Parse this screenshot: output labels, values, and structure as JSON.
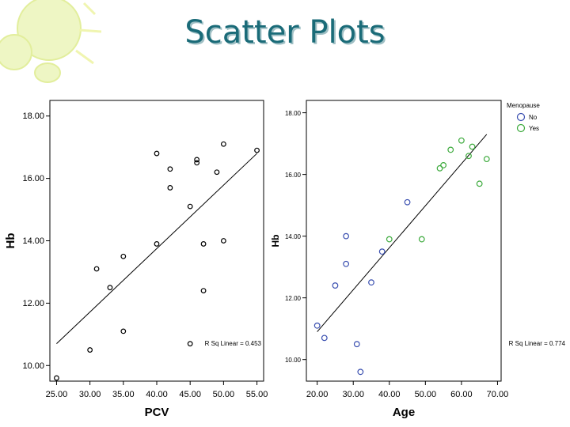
{
  "slide": {
    "title": "Scatter Plots",
    "accent_color": "#1a6b78",
    "decoration_color": "#e6f0a8"
  },
  "chart_data": [
    {
      "type": "scatter",
      "title": "",
      "xlabel": "PCV",
      "ylabel": "Hb",
      "xlim": [
        24,
        56
      ],
      "ylim": [
        9.5,
        18.5
      ],
      "xticks": [
        25,
        30,
        35,
        40,
        45,
        50,
        55
      ],
      "xtick_labels": [
        "25.00",
        "30.00",
        "35.00",
        "40.00",
        "45.00",
        "50.00",
        "55.00"
      ],
      "yticks": [
        10,
        12,
        14,
        16,
        18
      ],
      "ytick_labels": [
        "10.00",
        "12.00",
        "14.00",
        "16.00",
        "18.00"
      ],
      "grid": false,
      "series": [
        {
          "marker_color": "#000000",
          "points": [
            {
              "x": 25,
              "y": 9.6
            },
            {
              "x": 30,
              "y": 10.5
            },
            {
              "x": 31,
              "y": 13.1
            },
            {
              "x": 33,
              "y": 12.5
            },
            {
              "x": 35,
              "y": 13.5
            },
            {
              "x": 35,
              "y": 11.1
            },
            {
              "x": 40,
              "y": 16.8
            },
            {
              "x": 40,
              "y": 13.9
            },
            {
              "x": 42,
              "y": 16.3
            },
            {
              "x": 42,
              "y": 15.7
            },
            {
              "x": 45,
              "y": 15.1
            },
            {
              "x": 45,
              "y": 10.7
            },
            {
              "x": 46,
              "y": 16.6
            },
            {
              "x": 46,
              "y": 16.5
            },
            {
              "x": 47,
              "y": 13.9
            },
            {
              "x": 47,
              "y": 12.4
            },
            {
              "x": 49,
              "y": 16.2
            },
            {
              "x": 50,
              "y": 17.1
            },
            {
              "x": 50,
              "y": 14.0
            },
            {
              "x": 55,
              "y": 16.9
            }
          ]
        }
      ],
      "fit_line": {
        "x": [
          25,
          55
        ],
        "y": [
          10.7,
          16.8
        ],
        "color": "#000000"
      },
      "annotation": "R Sq Linear = 0.453"
    },
    {
      "type": "scatter",
      "title": "",
      "xlabel": "Age",
      "ylabel": "Hb",
      "xlim": [
        17,
        71
      ],
      "ylim": [
        9.3,
        18.4
      ],
      "xticks": [
        20,
        30,
        40,
        50,
        60,
        70
      ],
      "xtick_labels": [
        "20.00",
        "30.00",
        "40.00",
        "50.00",
        "60.00",
        "70.00"
      ],
      "yticks": [
        10,
        12,
        14,
        16,
        18
      ],
      "ytick_labels": [
        "10.00",
        "12.00",
        "14.00",
        "16.00",
        "18.00"
      ],
      "grid": false,
      "legend": {
        "title": "Menopause",
        "position": "top-right, outside"
      },
      "series": [
        {
          "name": "No",
          "marker_color": "#3a4fb0",
          "points": [
            {
              "x": 20,
              "y": 11.1
            },
            {
              "x": 22,
              "y": 10.7
            },
            {
              "x": 25,
              "y": 12.4
            },
            {
              "x": 28,
              "y": 14.0
            },
            {
              "x": 28,
              "y": 13.1
            },
            {
              "x": 31,
              "y": 10.5
            },
            {
              "x": 32,
              "y": 9.6
            },
            {
              "x": 35,
              "y": 12.5
            },
            {
              "x": 38,
              "y": 13.5
            },
            {
              "x": 45,
              "y": 15.1
            }
          ]
        },
        {
          "name": "Yes",
          "marker_color": "#3caa3c",
          "points": [
            {
              "x": 40,
              "y": 13.9
            },
            {
              "x": 49,
              "y": 13.9
            },
            {
              "x": 54,
              "y": 16.2
            },
            {
              "x": 55,
              "y": 16.3
            },
            {
              "x": 57,
              "y": 16.8
            },
            {
              "x": 60,
              "y": 17.1
            },
            {
              "x": 62,
              "y": 16.6
            },
            {
              "x": 63,
              "y": 16.9
            },
            {
              "x": 65,
              "y": 15.7
            },
            {
              "x": 67,
              "y": 16.5
            }
          ]
        }
      ],
      "fit_line": {
        "x": [
          20,
          67
        ],
        "y": [
          10.9,
          17.3
        ],
        "color": "#000000"
      },
      "annotation": "R Sq Linear = 0.774"
    }
  ]
}
